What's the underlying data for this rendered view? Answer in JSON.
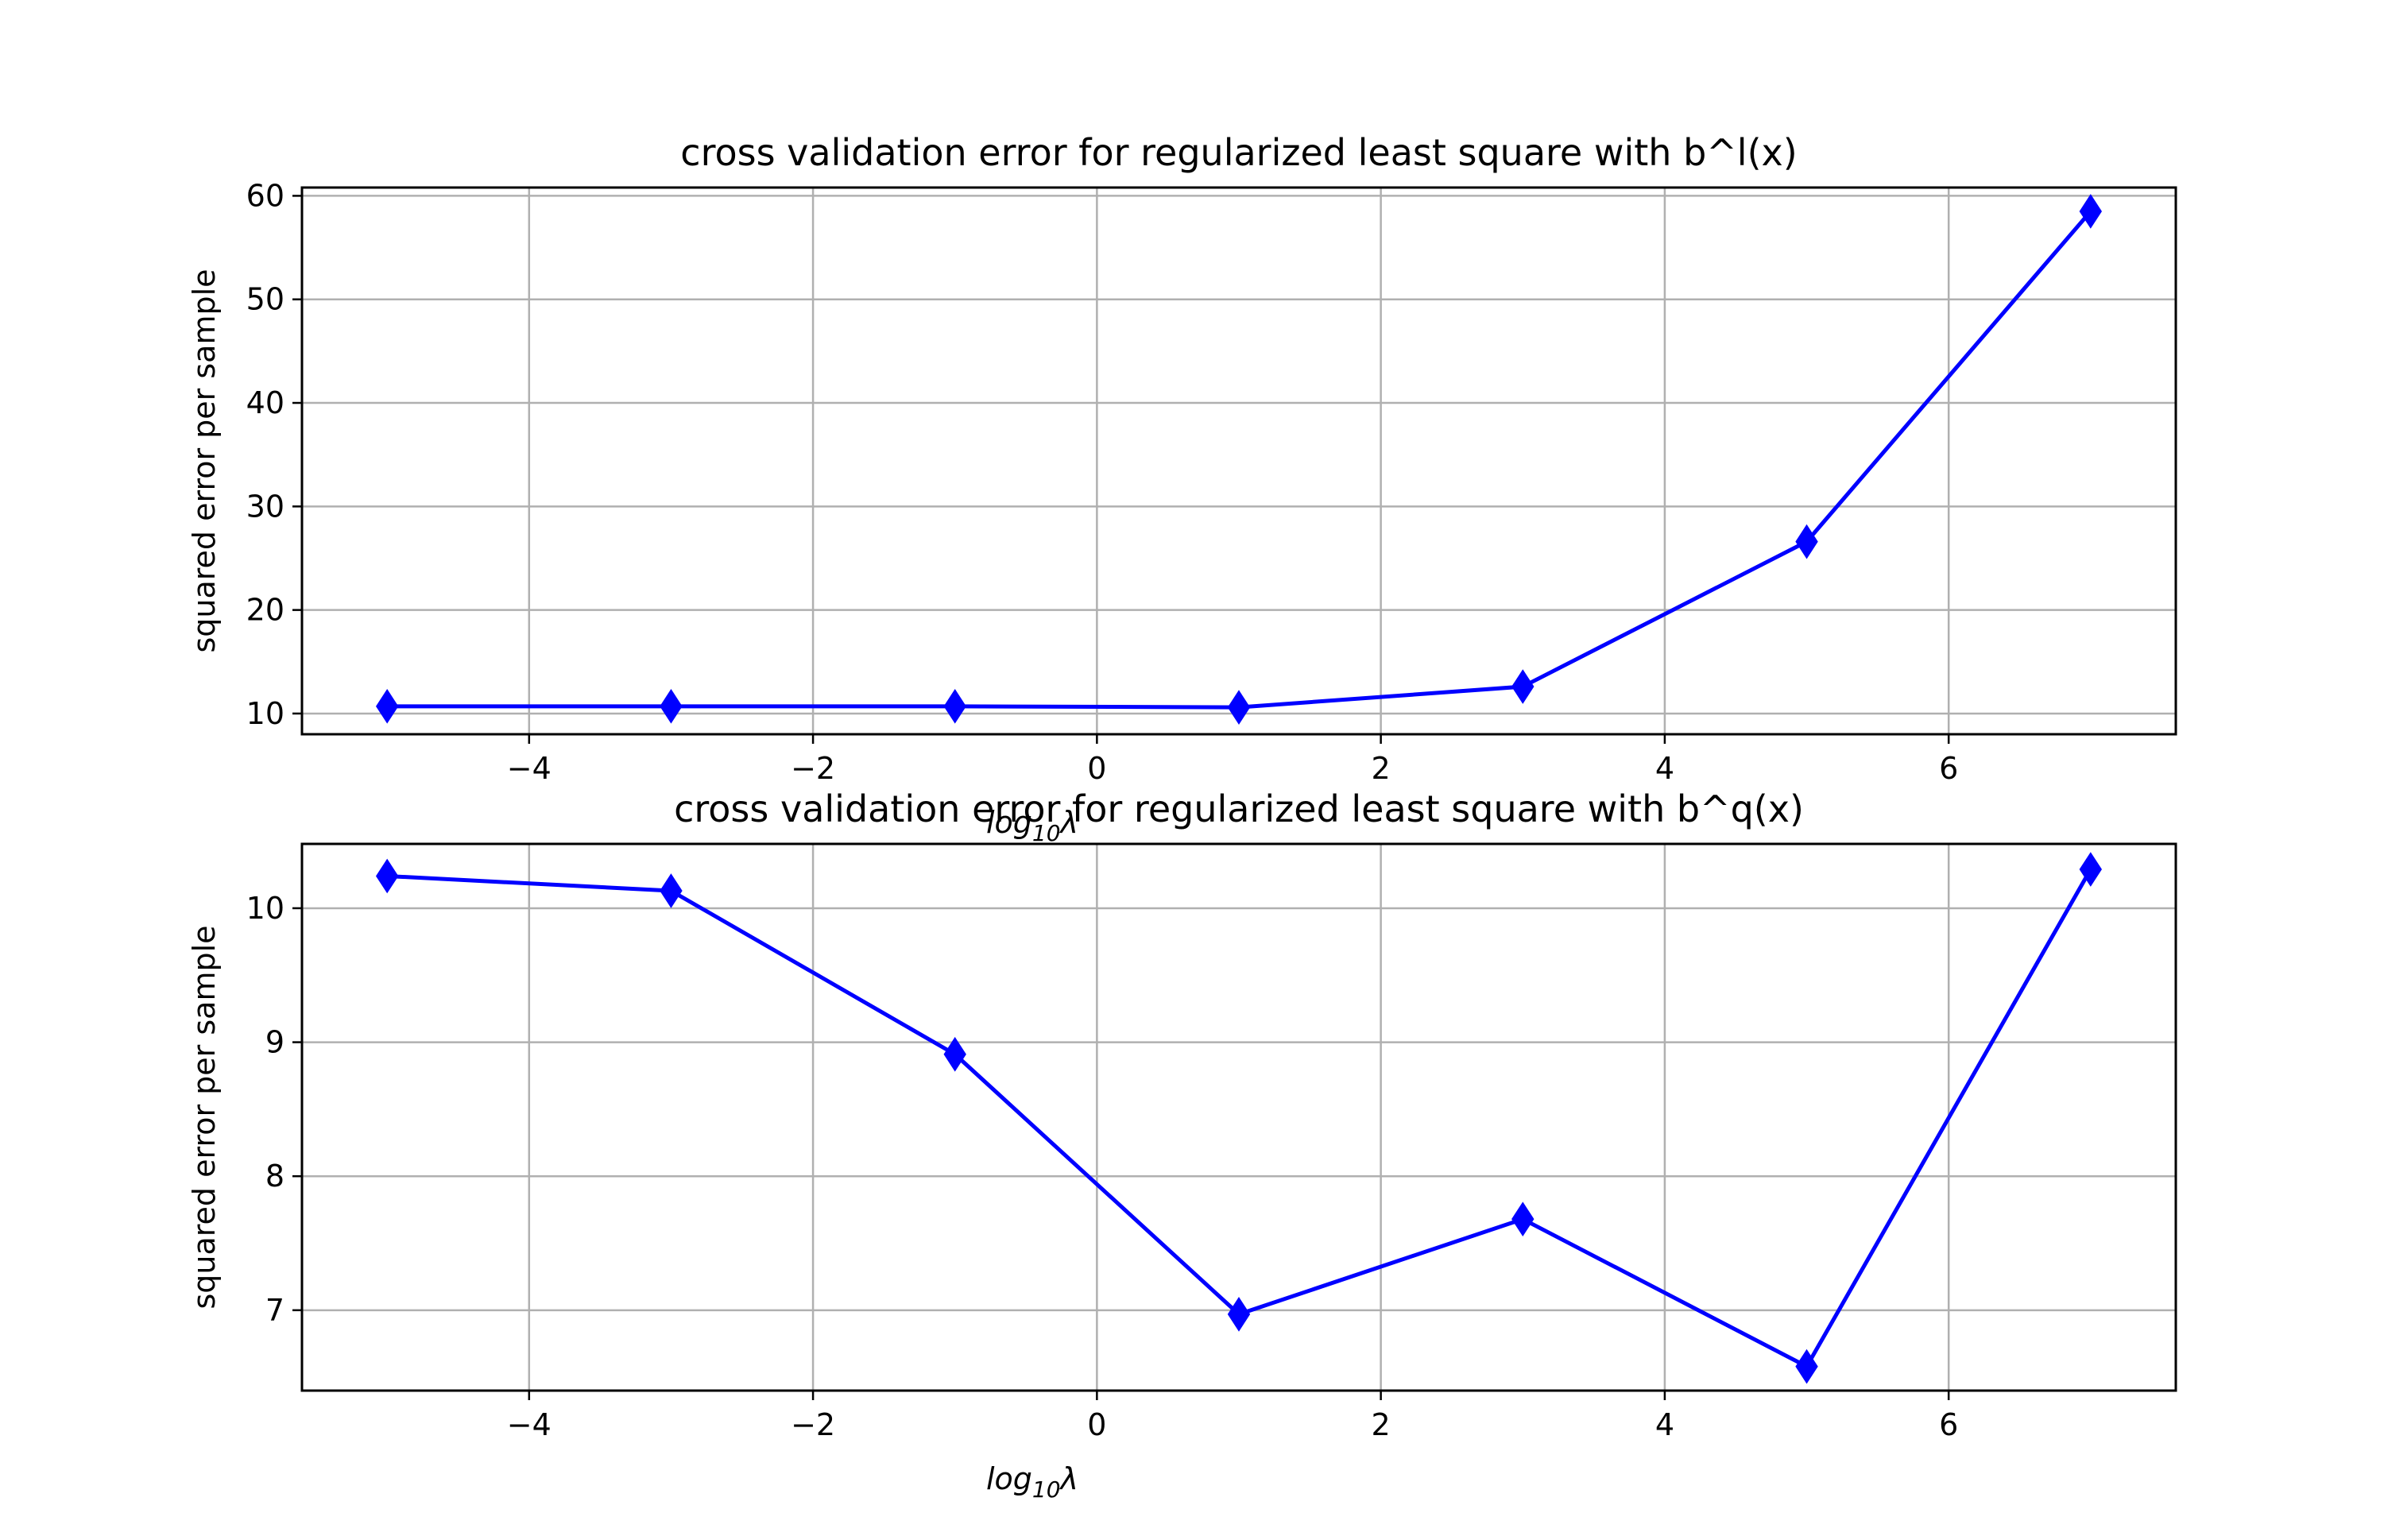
{
  "chart_data": [
    {
      "type": "line",
      "title": "cross validation error for regularized least square with b^l(x)",
      "xlabel_base": "log",
      "xlabel_sub": "10",
      "xlabel_var": "λ",
      "ylabel": "squared error per sample",
      "xlim": [
        -5.6,
        7.6
      ],
      "ylim": [
        8.0,
        60.8
      ],
      "xticks": [
        -4,
        -2,
        0,
        2,
        4,
        6
      ],
      "xtick_labels": [
        "−4",
        "−2",
        "0",
        "2",
        "4",
        "6"
      ],
      "yticks": [
        10,
        20,
        30,
        40,
        50,
        60
      ],
      "ytick_labels": [
        "10",
        "20",
        "30",
        "40",
        "50",
        "60"
      ],
      "grid": true,
      "color": "#0000ff",
      "marker": "diamond",
      "x": [
        -5,
        -3,
        -1,
        1,
        3,
        5,
        7
      ],
      "y": [
        10.7,
        10.7,
        10.7,
        10.6,
        12.6,
        26.6,
        58.5
      ]
    },
    {
      "type": "line",
      "title": "cross validation error for regularized least square with b^q(x)",
      "xlabel_base": "log",
      "xlabel_sub": "10",
      "xlabel_var": "λ",
      "ylabel": "squared error per sample",
      "xlim": [
        -5.6,
        7.6
      ],
      "ylim": [
        6.4,
        10.48
      ],
      "xticks": [
        -4,
        -2,
        0,
        2,
        4,
        6
      ],
      "xtick_labels": [
        "−4",
        "−2",
        "0",
        "2",
        "4",
        "6"
      ],
      "yticks": [
        7,
        8,
        9,
        10
      ],
      "ytick_labels": [
        "7",
        "8",
        "9",
        "10"
      ],
      "grid": true,
      "color": "#0000ff",
      "marker": "diamond",
      "x": [
        -5,
        -3,
        -1,
        1,
        3,
        5,
        7
      ],
      "y": [
        10.24,
        10.13,
        8.91,
        6.97,
        7.68,
        6.58,
        10.29
      ]
    }
  ]
}
